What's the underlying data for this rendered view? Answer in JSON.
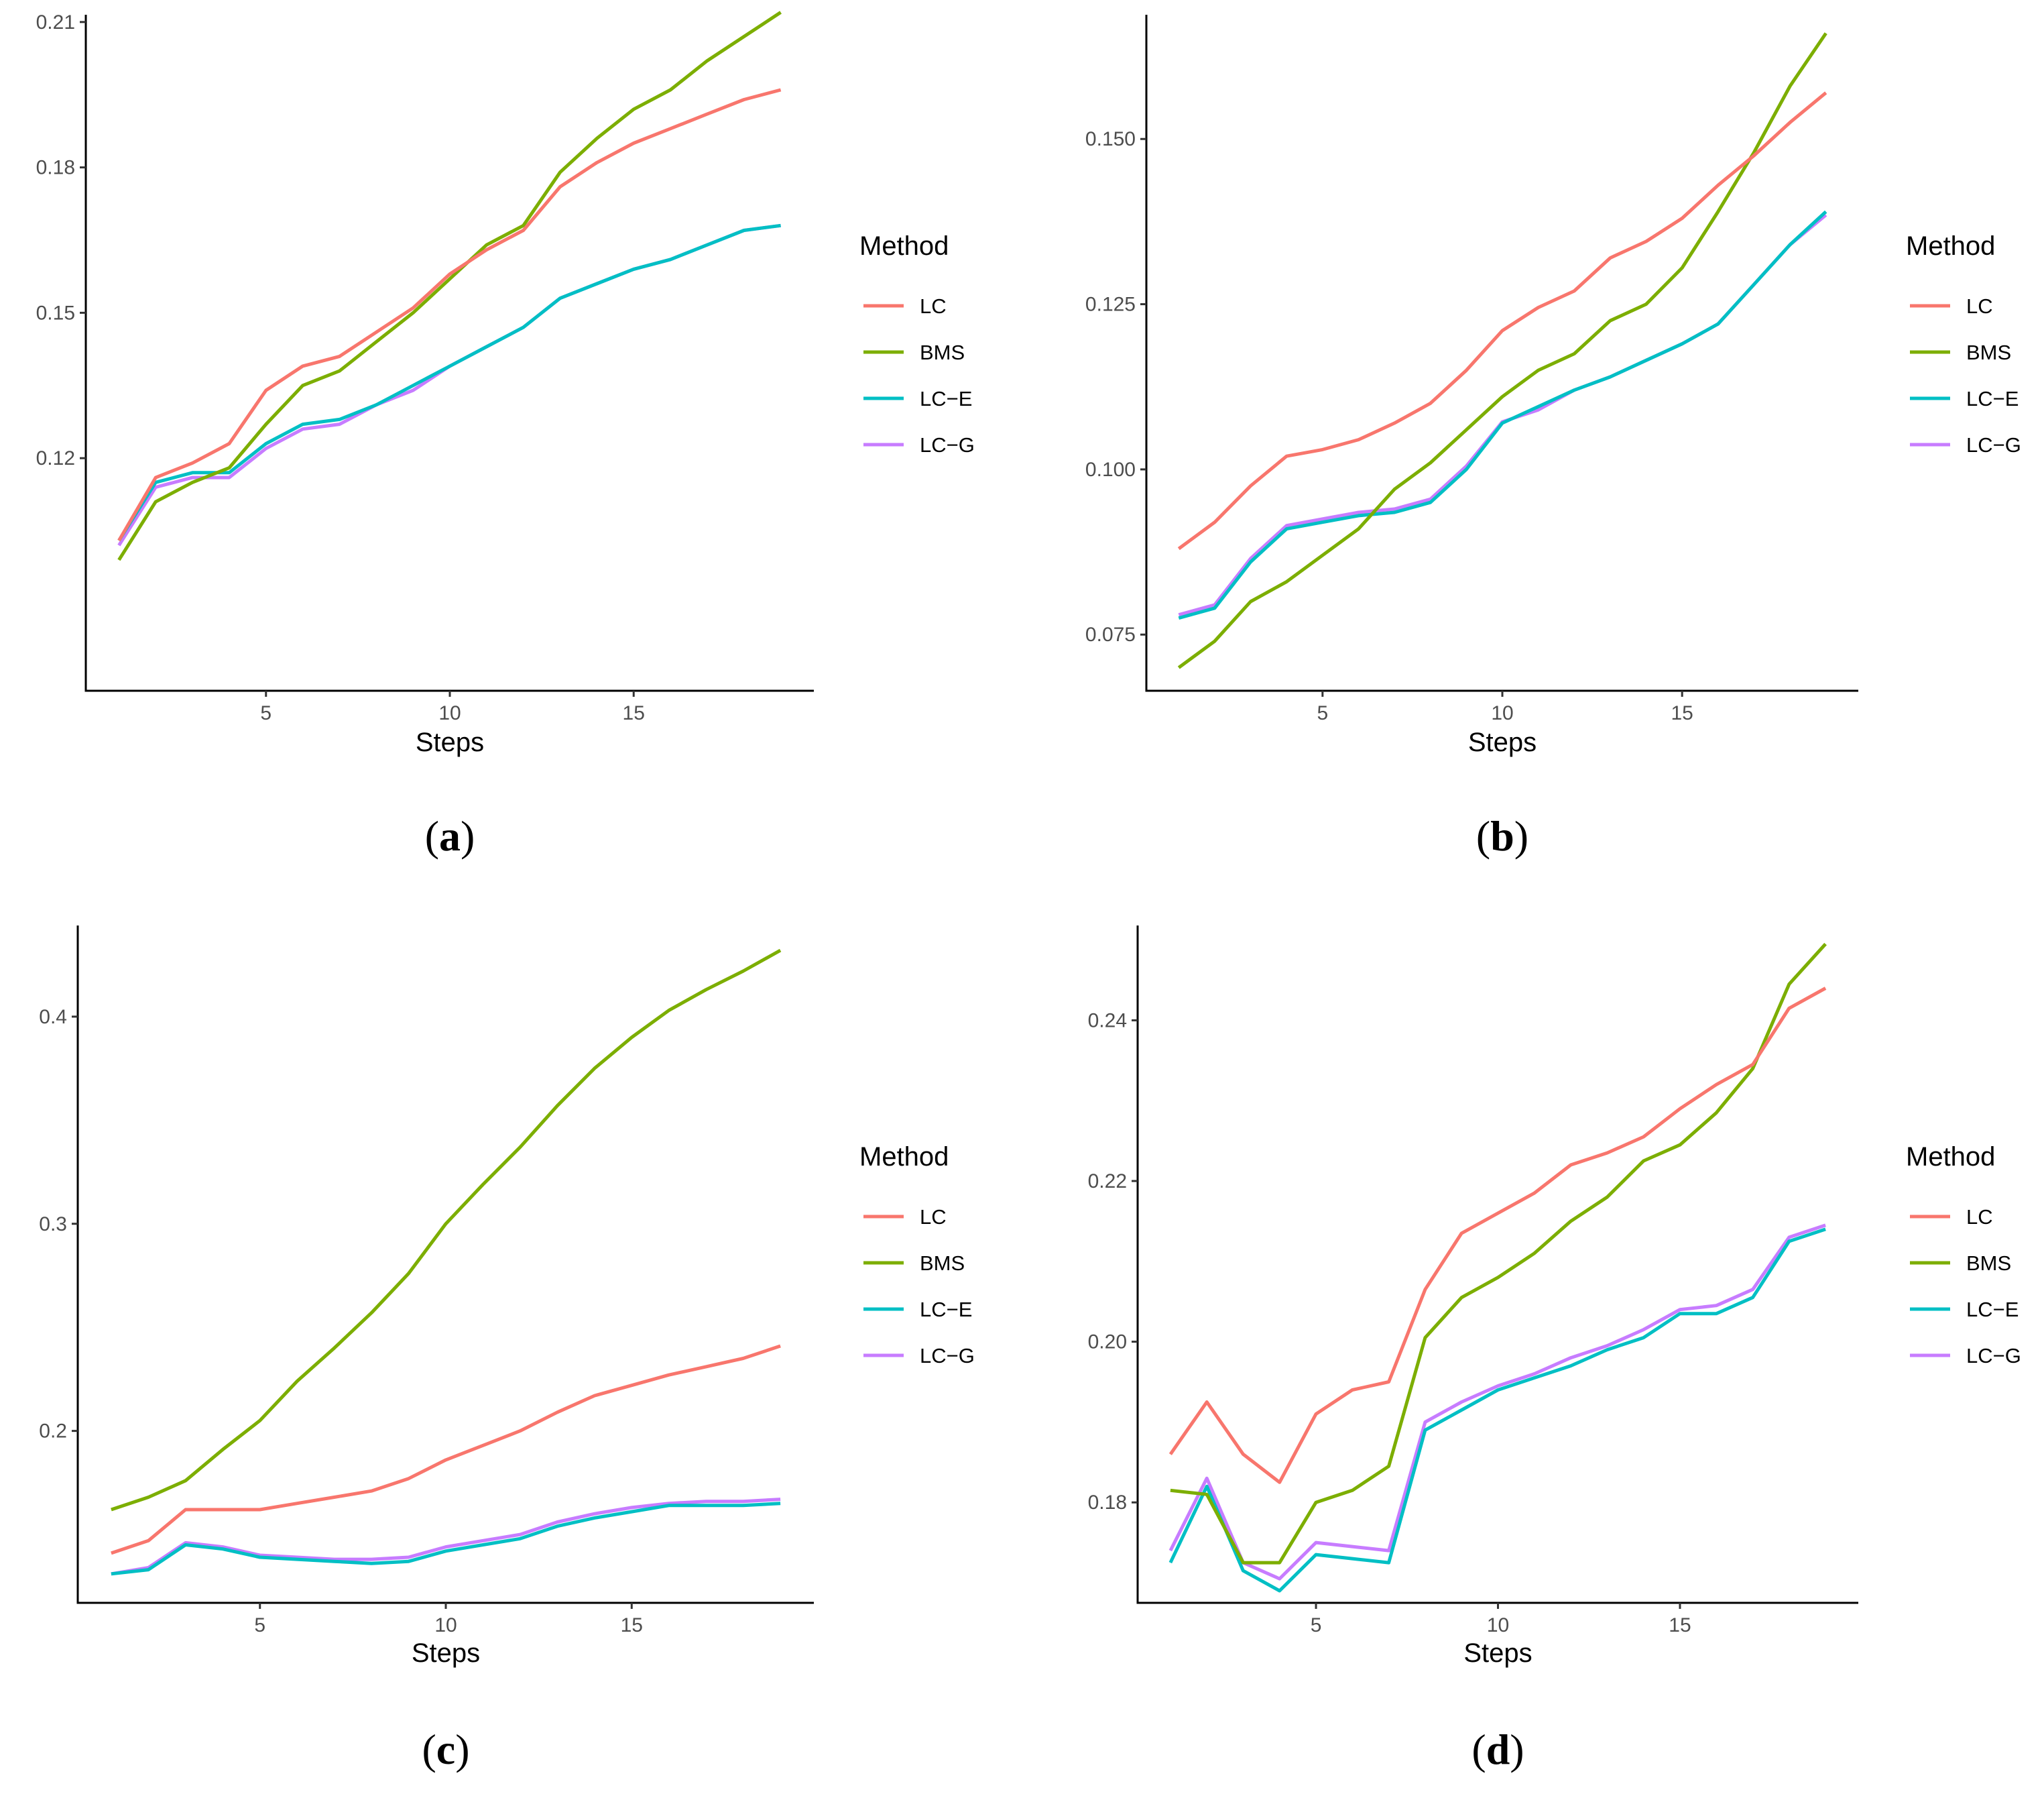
{
  "legend_title": "Method",
  "colors": {
    "LC": "#F8766D",
    "BMS": "#7CAE00",
    "LC-E": "#00BFC4",
    "LC-G": "#C77CFF"
  },
  "chart_data": [
    {
      "panel": "(a)",
      "panel_letter": "a",
      "type": "line",
      "xlabel": "Steps",
      "ylabel": "",
      "xlim": [
        0.1,
        19.9
      ],
      "ylim": [
        0.072,
        0.2115
      ],
      "xticks": [
        5,
        10,
        15
      ],
      "yticks": [
        0.12,
        0.15,
        0.18,
        0.21
      ],
      "ytick_labels": [
        "0.12",
        "0.15",
        "0.18",
        "0.21"
      ],
      "legend": [
        "LC",
        "BMS",
        "LC−E",
        "LC−G"
      ],
      "legend_position": "right",
      "x": [
        1,
        2,
        3,
        4,
        5,
        6,
        7,
        8,
        9,
        10,
        11,
        12,
        13,
        14,
        15,
        16,
        17,
        18,
        19
      ],
      "series": [
        {
          "key": "LC",
          "name": "LC",
          "values": [
            0.103,
            0.116,
            0.119,
            0.123,
            0.134,
            0.139,
            0.141,
            0.146,
            0.151,
            0.158,
            0.163,
            0.167,
            0.176,
            0.181,
            0.185,
            0.188,
            0.191,
            0.194,
            0.196
          ]
        },
        {
          "key": "BMS",
          "name": "BMS",
          "values": [
            0.099,
            0.111,
            0.115,
            0.118,
            0.127,
            0.135,
            0.138,
            0.144,
            0.15,
            0.157,
            0.164,
            0.168,
            0.179,
            0.186,
            0.192,
            0.196,
            0.202,
            0.207,
            0.212
          ]
        },
        {
          "key": "LC-E",
          "name": "LC−E",
          "values": [
            0.103,
            0.115,
            0.117,
            0.117,
            0.123,
            0.127,
            0.128,
            0.131,
            0.135,
            0.139,
            0.143,
            0.147,
            0.153,
            0.156,
            0.159,
            0.161,
            0.164,
            0.167,
            0.168
          ]
        },
        {
          "key": "LC-G",
          "name": "LC−G",
          "values": [
            0.102,
            0.114,
            0.116,
            0.116,
            0.122,
            0.126,
            0.127,
            0.131,
            0.134,
            0.139,
            0.143,
            0.147,
            0.153,
            0.156,
            0.159,
            0.161,
            0.164,
            0.167,
            0.168
          ]
        }
      ]
    },
    {
      "panel": "(b)",
      "panel_letter": "b",
      "type": "line",
      "xlabel": "Steps",
      "ylabel": "",
      "xlim": [
        0.1,
        19.9
      ],
      "ylim": [
        0.0665,
        0.1688
      ],
      "xticks": [
        5,
        10,
        15
      ],
      "yticks": [
        0.075,
        0.1,
        0.125,
        0.15
      ],
      "ytick_labels": [
        "0.075",
        "0.100",
        "0.125",
        "0.150"
      ],
      "legend": [
        "LC",
        "BMS",
        "LC−E",
        "LC−G"
      ],
      "legend_position": "right",
      "x": [
        1,
        2,
        3,
        4,
        5,
        6,
        7,
        8,
        9,
        10,
        11,
        12,
        13,
        14,
        15,
        16,
        17,
        18,
        19
      ],
      "series": [
        {
          "key": "LC",
          "name": "LC",
          "values": [
            0.088,
            0.092,
            0.0975,
            0.102,
            0.103,
            0.1045,
            0.107,
            0.11,
            0.115,
            0.121,
            0.1245,
            0.127,
            0.132,
            0.1345,
            0.138,
            0.143,
            0.1475,
            0.1525,
            0.157
          ]
        },
        {
          "key": "BMS",
          "name": "BMS",
          "values": [
            0.07,
            0.074,
            0.08,
            0.083,
            0.087,
            0.091,
            0.097,
            0.101,
            0.106,
            0.111,
            0.115,
            0.1175,
            0.1225,
            0.125,
            0.1305,
            0.139,
            0.148,
            0.158,
            0.166
          ]
        },
        {
          "key": "LC-E",
          "name": "LC−E",
          "values": [
            0.0775,
            0.079,
            0.086,
            0.091,
            0.092,
            0.093,
            0.0935,
            0.095,
            0.1,
            0.107,
            0.1095,
            0.112,
            0.114,
            0.1165,
            0.119,
            0.122,
            0.128,
            0.134,
            0.139
          ]
        },
        {
          "key": "LC-G",
          "name": "LC−G",
          "values": [
            0.078,
            0.0795,
            0.0865,
            0.0915,
            0.0925,
            0.0935,
            0.094,
            0.0955,
            0.1005,
            0.1072,
            0.109,
            0.112,
            0.114,
            0.1165,
            0.119,
            0.122,
            0.128,
            0.134,
            0.1385
          ]
        }
      ]
    },
    {
      "panel": "(c)",
      "panel_letter": "c",
      "type": "line",
      "xlabel": "Steps",
      "ylabel": "",
      "xlim": [
        0.1,
        19.9
      ],
      "ylim": [
        0.117,
        0.444
      ],
      "xticks": [
        5,
        10,
        15
      ],
      "yticks": [
        0.2,
        0.3,
        0.4
      ],
      "ytick_labels": [
        "0.2",
        "0.3",
        "0.4"
      ],
      "legend": [
        "LC",
        "BMS",
        "LC−E",
        "LC−G"
      ],
      "legend_position": "right",
      "x": [
        1,
        2,
        3,
        4,
        5,
        6,
        7,
        8,
        9,
        10,
        11,
        12,
        13,
        14,
        15,
        16,
        17,
        18,
        19
      ],
      "series": [
        {
          "key": "LC",
          "name": "LC",
          "values": [
            0.141,
            0.147,
            0.162,
            0.162,
            0.162,
            0.165,
            0.168,
            0.171,
            0.177,
            0.186,
            0.193,
            0.2,
            0.209,
            0.217,
            0.222,
            0.227,
            0.231,
            0.235,
            0.241
          ]
        },
        {
          "key": "BMS",
          "name": "BMS",
          "values": [
            0.162,
            0.168,
            0.176,
            0.191,
            0.205,
            0.224,
            0.24,
            0.257,
            0.276,
            0.3,
            0.319,
            0.337,
            0.357,
            0.375,
            0.39,
            0.403,
            0.413,
            0.422,
            0.432
          ]
        },
        {
          "key": "LC-E",
          "name": "LC−E",
          "values": [
            0.131,
            0.133,
            0.145,
            0.143,
            0.139,
            0.138,
            0.137,
            0.136,
            0.137,
            0.142,
            0.145,
            0.148,
            0.154,
            0.158,
            0.161,
            0.164,
            0.164,
            0.164,
            0.165
          ]
        },
        {
          "key": "LC-G",
          "name": "LC−G",
          "values": [
            0.131,
            0.134,
            0.146,
            0.144,
            0.14,
            0.139,
            0.138,
            0.138,
            0.139,
            0.144,
            0.147,
            0.15,
            0.156,
            0.16,
            0.163,
            0.165,
            0.166,
            0.166,
            0.167
          ]
        }
      ]
    },
    {
      "panel": "(d)",
      "panel_letter": "d",
      "type": "line",
      "xlabel": "Steps",
      "ylabel": "",
      "xlim": [
        0.1,
        19.9
      ],
      "ylim": [
        0.1675,
        0.2518
      ],
      "xticks": [
        5,
        10,
        15
      ],
      "yticks": [
        0.18,
        0.2,
        0.22,
        0.24
      ],
      "ytick_labels": [
        "0.18",
        "0.20",
        "0.22",
        "0.24"
      ],
      "legend": [
        "LC",
        "BMS",
        "LC−E",
        "LC−G"
      ],
      "legend_position": "right",
      "x": [
        1,
        2,
        3,
        4,
        5,
        6,
        7,
        8,
        9,
        10,
        11,
        12,
        13,
        14,
        15,
        16,
        17,
        18,
        19
      ],
      "series": [
        {
          "key": "LC",
          "name": "LC",
          "values": [
            0.186,
            0.1925,
            0.186,
            0.1825,
            0.191,
            0.194,
            0.195,
            0.2065,
            0.2135,
            0.216,
            0.2185,
            0.222,
            0.2235,
            0.2255,
            0.229,
            0.232,
            0.2345,
            0.2415,
            0.244
          ]
        },
        {
          "key": "BMS",
          "name": "BMS",
          "values": [
            0.1815,
            0.181,
            0.1725,
            0.1725,
            0.18,
            0.1815,
            0.1845,
            0.2005,
            0.2055,
            0.208,
            0.211,
            0.215,
            0.218,
            0.2225,
            0.2245,
            0.2285,
            0.234,
            0.2445,
            0.2495
          ]
        },
        {
          "key": "LC-E",
          "name": "LC−E",
          "values": [
            0.1725,
            0.182,
            0.1715,
            0.169,
            0.1735,
            0.173,
            0.1725,
            0.189,
            0.1915,
            0.194,
            0.1955,
            0.197,
            0.199,
            0.2005,
            0.2035,
            0.2035,
            0.2055,
            0.2125,
            0.214
          ]
        },
        {
          "key": "LC-G",
          "name": "LC−G",
          "values": [
            0.174,
            0.183,
            0.1725,
            0.1705,
            0.175,
            0.1745,
            0.174,
            0.19,
            0.1925,
            0.1945,
            0.196,
            0.198,
            0.1995,
            0.2015,
            0.204,
            0.2045,
            0.2065,
            0.213,
            0.2145
          ]
        }
      ]
    }
  ]
}
